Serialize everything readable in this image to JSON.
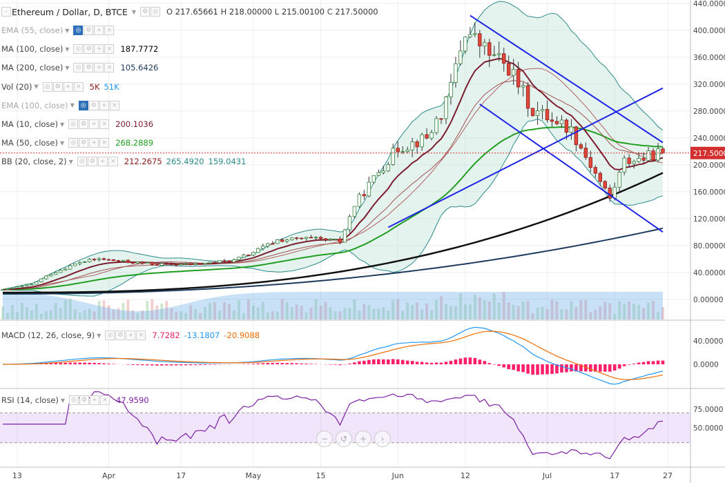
{
  "header": {
    "title": "Ethereum / Dollar, D, BTCE",
    "ohlc": {
      "open_label": "O",
      "open": "217.65661",
      "high_label": "H",
      "high": "218.00000",
      "low_label": "L",
      "low": "215.00100",
      "close_label": "C",
      "close": "217.50000"
    }
  },
  "indicators": [
    {
      "label": "EMA (55, close)",
      "dim": true,
      "values": []
    },
    {
      "label": "MA (100, close)",
      "values": [
        {
          "text": "187.7772",
          "color": "#000000"
        }
      ]
    },
    {
      "label": "MA (200, close)",
      "values": [
        {
          "text": "105.6426",
          "color": "#1b3a5c"
        }
      ]
    },
    {
      "label": "Vol (20)",
      "values": [
        {
          "text": "5K",
          "color": "#8b1a1a"
        },
        {
          "text": "51K",
          "color": "#2196f3"
        }
      ]
    },
    {
      "label": "EMA (100, close)",
      "dim": true,
      "values": []
    },
    {
      "label": "MA (10, close)",
      "values": [
        {
          "text": "200.1036",
          "color": "#7b1c2e"
        }
      ]
    },
    {
      "label": "MA (50, close)",
      "values": [
        {
          "text": "268.2889",
          "color": "#1f9d1f"
        }
      ]
    },
    {
      "label": "BB (20, close, 2)",
      "values": [
        {
          "text": "212.2675",
          "color": "#8b1a1a"
        },
        {
          "text": "265.4920",
          "color": "#2a8a8a"
        },
        {
          "text": "159.0431",
          "color": "#2a8a8a"
        }
      ]
    }
  ],
  "macd_legend": {
    "label": "MACD (12, 26, close, 9)",
    "values": [
      {
        "text": "7.7282",
        "color": "#e91e63"
      },
      {
        "text": "-13.1807",
        "color": "#2196f3"
      },
      {
        "text": "-20.9088",
        "color": "#f06b00"
      }
    ]
  },
  "rsi_legend": {
    "label": "RSI (14, close)",
    "values": [
      {
        "text": "47.9590",
        "color": "#7b1fa2"
      }
    ]
  },
  "price_axis": {
    "ticks": [
      "440.00000",
      "400.00000",
      "360.00000",
      "320.00000",
      "280.00000",
      "240.00000",
      "200.00000",
      "160.00000",
      "120.00000",
      "80.00000",
      "40.00000",
      "0.00000"
    ],
    "tick_values": [
      440,
      400,
      360,
      320,
      280,
      240,
      200,
      160,
      120,
      80,
      40,
      0
    ],
    "current": "217.50000",
    "current_value": 217.5,
    "current_color": "#d32f2f"
  },
  "macd_axis": {
    "ticks": [
      "40.0000",
      "0.0000"
    ],
    "tick_values": [
      40,
      0
    ]
  },
  "rsi_axis": {
    "ticks": [
      "75.0000",
      "50.0000"
    ],
    "tick_values": [
      75,
      50
    ]
  },
  "time_axis": {
    "labels": [
      "13",
      "Apr",
      "17",
      "May",
      "15",
      "Jun",
      "12",
      "Jul",
      "17",
      "27"
    ],
    "label_days": [
      3,
      22,
      37,
      52,
      66,
      82,
      96,
      113,
      127,
      138
    ]
  },
  "zoom_controls": [
    {
      "name": "zoom-out",
      "glyph": "−"
    },
    {
      "name": "reset",
      "glyph": "↺"
    },
    {
      "name": "zoom-in",
      "glyph": "+"
    },
    {
      "name": "scroll-forward",
      "glyph": "›"
    }
  ],
  "chart_data": {
    "type": "candlestick",
    "symbol": "Ethereum / Dollar",
    "interval": "D",
    "exchange": "BTCE",
    "y_range": [
      -30,
      445
    ],
    "control_points": [
      [
        0,
        14
      ],
      [
        6,
        22
      ],
      [
        10,
        38
      ],
      [
        16,
        55
      ],
      [
        20,
        60
      ],
      [
        25,
        56
      ],
      [
        32,
        52
      ],
      [
        40,
        52
      ],
      [
        48,
        58
      ],
      [
        52,
        70
      ],
      [
        57,
        88
      ],
      [
        63,
        90
      ],
      [
        70,
        86
      ],
      [
        73,
        140
      ],
      [
        78,
        190
      ],
      [
        82,
        225
      ],
      [
        88,
        240
      ],
      [
        92,
        290
      ],
      [
        96,
        400
      ],
      [
        101,
        365
      ],
      [
        105,
        345
      ],
      [
        110,
        280
      ],
      [
        114,
        270
      ],
      [
        118,
        252
      ],
      [
        122,
        200
      ],
      [
        126,
        150
      ],
      [
        129,
        205
      ],
      [
        133,
        210
      ],
      [
        136,
        217.5
      ]
    ],
    "indicator_values": {
      "ma100": 187.7772,
      "ma200": 105.6426,
      "ma10": 200.1036,
      "ma50": 268.2889,
      "bb_basis": 212.2675,
      "bb_upper": 265.492,
      "bb_lower": 159.0431,
      "vol": "5K",
      "vol_ma": "51K",
      "macd_hist": 7.7282,
      "macd": -13.1807,
      "macd_signal": -20.9088,
      "rsi": 47.959
    },
    "trend_channels": [
      {
        "from": [
          97,
          422
        ],
        "to": [
          137,
          233
        ],
        "color": "#1e24e6"
      },
      {
        "from": [
          99,
          290
        ],
        "to": [
          137,
          100
        ],
        "color": "#1e24e6"
      },
      {
        "from": [
          80,
          107
        ],
        "to": [
          137,
          314
        ],
        "color": "#1e24e6"
      }
    ],
    "rsi_levels": [
      70,
      30
    ]
  }
}
